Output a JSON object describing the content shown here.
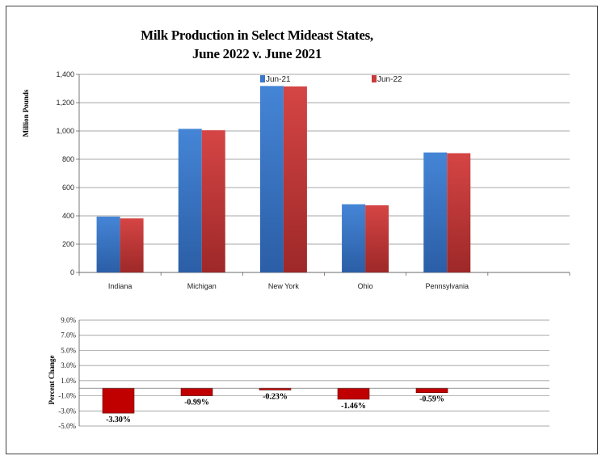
{
  "chart_data": [
    {
      "type": "bar",
      "title": "Milk Production in Select Mideast States,",
      "subtitle": "June 2022 v. June 2021",
      "ylabel": "Million Pounds",
      "xlabel": "",
      "categories": [
        "Indiana",
        "Michigan",
        "New York",
        "Ohio",
        "Pennsylvania"
      ],
      "series": [
        {
          "name": "Jun-21",
          "values": [
            395,
            1015,
            1318,
            482,
            848
          ],
          "color": "#3b78c9"
        },
        {
          "name": "Jun-22",
          "values": [
            382,
            1005,
            1315,
            475,
            843
          ],
          "color": "#c93a3a"
        }
      ],
      "ylim": [
        0,
        1400
      ],
      "yticks": [
        "0",
        "200",
        "400",
        "600",
        "800",
        "1,000",
        "1,200",
        "1,400"
      ],
      "grid": true,
      "legend": "top"
    },
    {
      "type": "bar",
      "ylabel": "Percent Change",
      "categories": [
        "Indiana",
        "Michigan",
        "New York",
        "Ohio",
        "Pennsylvania"
      ],
      "values": [
        -3.3,
        -0.99,
        -0.23,
        -1.46,
        -0.59
      ],
      "data_labels": [
        "-3.30%",
        "-0.99%",
        "-0.23%",
        "-1.46%",
        "-0.59%"
      ],
      "ylim": [
        -5.0,
        9.0
      ],
      "yticks": [
        "9.0%",
        "7.0%",
        "5.0%",
        "3.0%",
        "1.0%",
        "-1.0%",
        "-3.0%",
        "-5.0%"
      ],
      "color": "#c00000",
      "grid": true
    }
  ]
}
